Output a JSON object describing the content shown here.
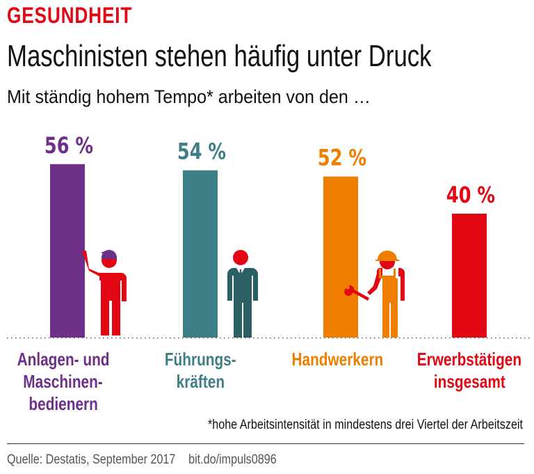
{
  "header": {
    "kicker": "GESUNDHEIT",
    "title": "Maschinisten stehen häufig unter Druck",
    "subtitle": "Mit ständig hohem Tempo* arbeiten von den …"
  },
  "chart_data": {
    "type": "bar",
    "categories": [
      "Anlagen- und Maschinen-bedienern",
      "Führungs-kräften",
      "Handwerkern",
      "Erwerbstätigen insgesamt"
    ],
    "category_lines": [
      [
        "Anlagen- und",
        "Maschinen-",
        "bedienern"
      ],
      [
        "Führungs-",
        "kräften"
      ],
      [
        "Handwerkern"
      ],
      [
        "Erwerbstätigen",
        "insgesamt"
      ]
    ],
    "values": [
      56,
      54,
      52,
      40
    ],
    "value_labels": [
      "56 %",
      "54 %",
      "52 %",
      "40 %"
    ],
    "colors": [
      "#6d2f87",
      "#3e7f87",
      "#ef7d00",
      "#e30613"
    ],
    "ylim": [
      0,
      100
    ],
    "unit": "%",
    "grid": false,
    "baseline": "dotted"
  },
  "icons": [
    "machine-operator-figure-icon",
    "manager-figure-icon",
    "craftsman-figure-icon"
  ],
  "footnote": "*hohe Arbeitsintensität in mindestens drei Viertel der Arbeitszeit",
  "source": {
    "label": "Quelle:",
    "text": "Destatis, September 2017",
    "link": "bit.do/impuls0896"
  }
}
